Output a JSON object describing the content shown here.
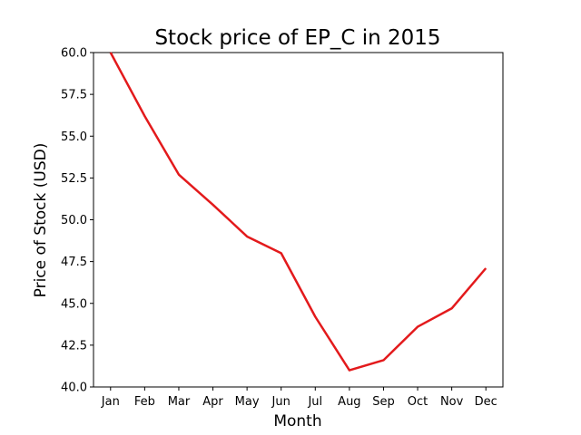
{
  "chart_data": {
    "type": "line",
    "title": "Stock price of EP_C in 2015",
    "xlabel": "Month",
    "ylabel": "Price of Stock (USD)",
    "categories": [
      "Jan",
      "Feb",
      "Mar",
      "Apr",
      "May",
      "Jun",
      "Jul",
      "Aug",
      "Sep",
      "Oct",
      "Nov",
      "Dec"
    ],
    "series": [
      {
        "values": [
          60.0,
          56.2,
          52.7,
          50.9,
          49.0,
          48.0,
          44.2,
          41.0,
          41.6,
          43.6,
          44.7,
          47.1
        ]
      }
    ],
    "ylim": [
      40.0,
      60.0
    ],
    "yticks": [
      "40.0",
      "42.5",
      "45.0",
      "47.5",
      "50.0",
      "52.5",
      "55.0",
      "57.5",
      "60.0"
    ],
    "grid": false,
    "line_color": "#e31a1c"
  }
}
